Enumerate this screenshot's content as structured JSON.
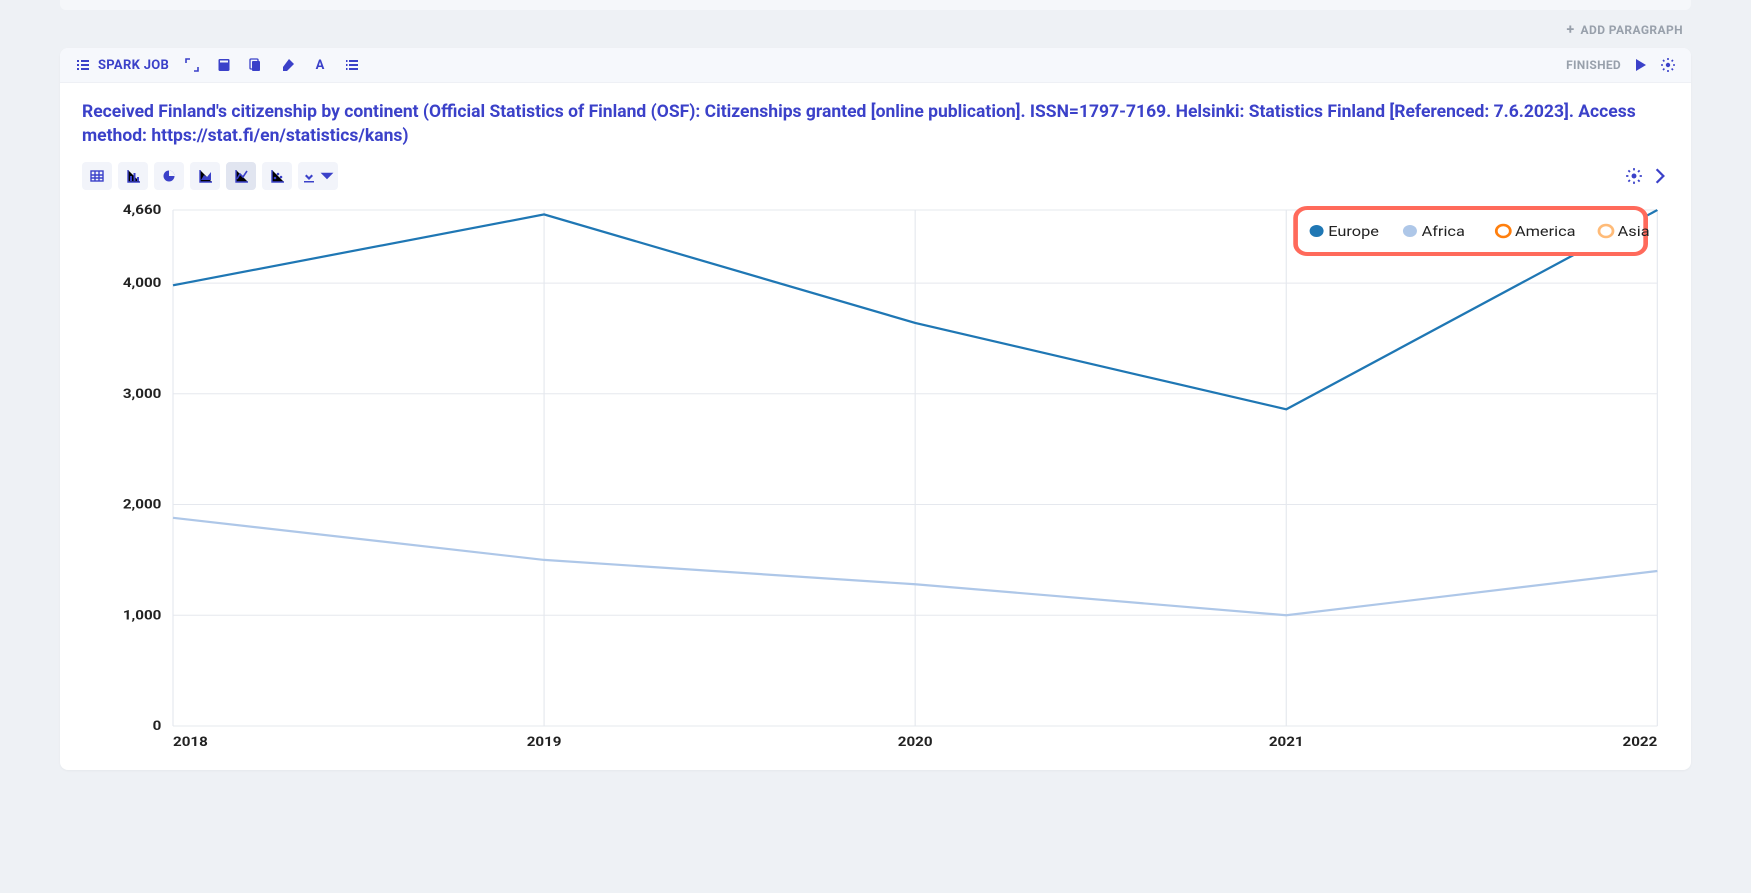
{
  "addParagraphLabel": "ADD PARAGRAPH",
  "header": {
    "sparkLabel": "SPARK JOB",
    "status": "FINISHED"
  },
  "title": "Received Finland's citizenship by continent (Official Statistics of Finland (OSF): Citizenships granted [online publication]. ISSN=1797-7169. Helsinki: Statistics Finland [Referenced: 7.6.2023]. Access method: https://stat.fi/en/statistics/kans)",
  "chart": {
    "type": "line",
    "xCategories": [
      "2018",
      "2019",
      "2020",
      "2021",
      "2022"
    ],
    "yTicks": [
      0,
      1000,
      2000,
      3000,
      4000,
      4660
    ],
    "yTickLabels": [
      "0",
      "1,000",
      "2,000",
      "3,000",
      "4,000",
      "4,660"
    ],
    "ylim": [
      0,
      4660
    ],
    "grid_color": "#e5e8ee",
    "background_color": "#ffffff",
    "legend": {
      "highlight_color": "#ff6a5b",
      "items": [
        {
          "label": "Europe",
          "marker": "filled",
          "color": "#1f77b4"
        },
        {
          "label": "Africa",
          "marker": "filled",
          "color": "#aec7e8"
        },
        {
          "label": "America",
          "marker": "ring",
          "color": "#ff7f0e"
        },
        {
          "label": "Asia",
          "marker": "ring",
          "color": "#ffbb78"
        }
      ]
    },
    "series": [
      {
        "name": "Europe",
        "color": "#1f77b4",
        "values": [
          3980,
          4620,
          3640,
          2860,
          4660
        ],
        "line_width": 2.2
      },
      {
        "name": "Africa",
        "color": "#aec7e8",
        "values": [
          1880,
          1500,
          1280,
          1000,
          1400
        ],
        "line_width": 2.2
      }
    ]
  }
}
